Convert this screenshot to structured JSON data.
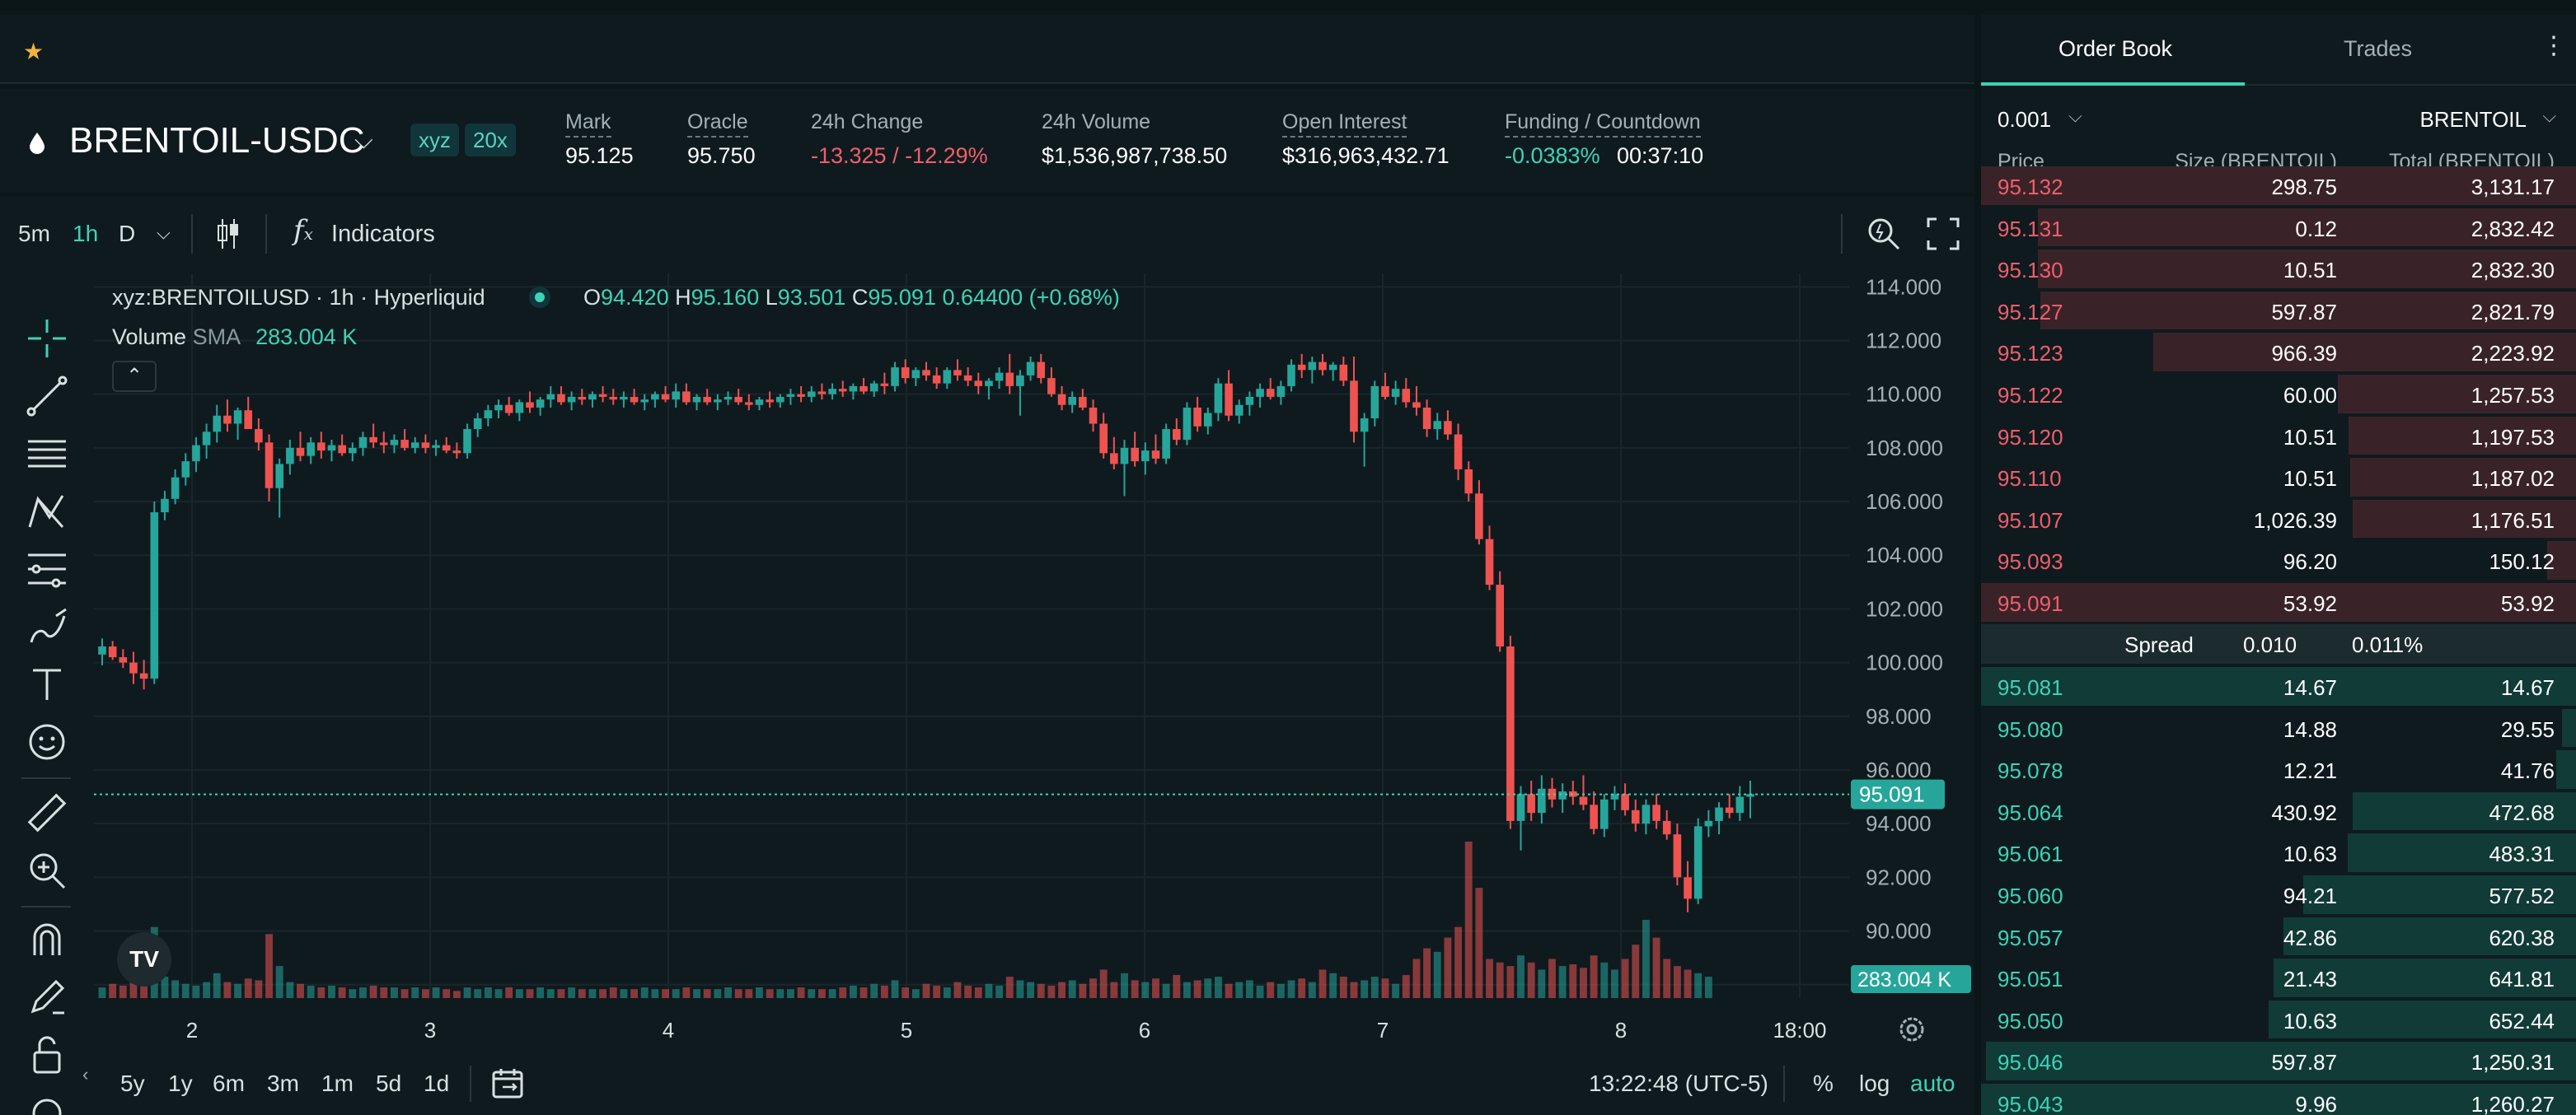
{
  "topbar": {
    "star_icon": "star-icon"
  },
  "market": {
    "pair": "BRENTOIL-USDC",
    "badges": [
      "xyz",
      "20x"
    ],
    "stats": [
      {
        "label": "Mark",
        "value": "95.125"
      },
      {
        "label": "Oracle",
        "value": "95.750"
      },
      {
        "label": "24h Change",
        "value": "-13.325 / -12.29%"
      },
      {
        "label": "24h Volume",
        "value": "$1,536,987,738.50"
      },
      {
        "label": "Open Interest",
        "value": "$316,963,432.71"
      },
      {
        "label": "Funding / Countdown",
        "value": "-0.0383%",
        "value2": "00:37:10"
      }
    ]
  },
  "chart_toolbar": {
    "timeframes": [
      "5m",
      "1h",
      "D"
    ],
    "active_timeframe": "1h",
    "indicators_label": "Indicators"
  },
  "chart_legend": {
    "symbol": "xyz:BRENTOILUSD · 1h · Hyperliquid",
    "o_label": "O",
    "o": "94.420",
    "h_label": "H",
    "h": "95.160",
    "l_label": "L",
    "l": "93.501",
    "c_label": "C",
    "c": "95.091",
    "change": "0.64400 (+0.68%)",
    "volume_label": "Volume",
    "sma_label": "SMA",
    "sma_value": "283.004 K"
  },
  "chart_data": {
    "type": "candlestick",
    "price_ticks": [
      "114.000",
      "112.000",
      "110.000",
      "108.000",
      "106.000",
      "104.000",
      "102.000",
      "100.000",
      "98.000",
      "96.000",
      "94.000",
      "92.000",
      "90.000",
      "88.000"
    ],
    "ylim": [
      87.5,
      114.5
    ],
    "time_ticks": [
      "2",
      "3",
      "4",
      "5",
      "6",
      "7",
      "8",
      "18:00"
    ],
    "last_price": "95.091",
    "volume_tag": "283.004 K",
    "candles": [
      [
        100.3,
        100.9,
        99.9,
        100.6
      ],
      [
        100.6,
        100.8,
        100.1,
        100.2
      ],
      [
        100.2,
        100.5,
        99.8,
        100.0
      ],
      [
        100.0,
        100.4,
        99.2,
        99.6
      ],
      [
        99.6,
        100.1,
        99.0,
        99.4
      ],
      [
        99.4,
        106.0,
        99.2,
        105.6
      ],
      [
        105.6,
        106.4,
        105.3,
        106.1
      ],
      [
        106.1,
        107.2,
        105.9,
        106.9
      ],
      [
        106.9,
        107.8,
        106.6,
        107.5
      ],
      [
        107.5,
        108.4,
        107.1,
        108.1
      ],
      [
        108.1,
        108.9,
        107.6,
        108.6
      ],
      [
        108.6,
        109.6,
        108.2,
        109.2
      ],
      [
        109.2,
        109.8,
        108.6,
        108.9
      ],
      [
        108.9,
        109.5,
        108.3,
        109.4
      ],
      [
        109.4,
        109.9,
        108.8,
        108.7
      ],
      [
        108.7,
        109.1,
        107.9,
        108.2
      ],
      [
        108.2,
        108.5,
        106.0,
        106.5
      ],
      [
        106.5,
        107.6,
        105.4,
        107.4
      ],
      [
        107.4,
        108.3,
        107.0,
        108.0
      ],
      [
        108.0,
        108.6,
        107.5,
        107.7
      ],
      [
        107.7,
        108.4,
        107.4,
        108.2
      ],
      [
        108.2,
        108.6,
        107.6,
        107.9
      ],
      [
        107.9,
        108.3,
        107.5,
        108.1
      ],
      [
        108.1,
        108.5,
        107.7,
        107.8
      ],
      [
        107.8,
        108.2,
        107.5,
        108.0
      ],
      [
        108.0,
        108.6,
        107.7,
        108.4
      ],
      [
        108.4,
        108.9,
        108.0,
        108.2
      ],
      [
        108.2,
        108.6,
        107.8,
        108.1
      ],
      [
        108.1,
        108.5,
        107.8,
        108.3
      ],
      [
        108.3,
        108.7,
        107.9,
        108.0
      ],
      [
        108.0,
        108.4,
        107.8,
        108.2
      ],
      [
        108.2,
        108.5,
        107.8,
        108.0
      ],
      [
        108.0,
        108.3,
        107.7,
        108.1
      ],
      [
        108.1,
        108.4,
        107.8,
        107.9
      ],
      [
        107.9,
        108.2,
        107.6,
        107.8
      ],
      [
        107.8,
        108.9,
        107.6,
        108.7
      ],
      [
        108.7,
        109.3,
        108.4,
        109.1
      ],
      [
        109.1,
        109.6,
        108.8,
        109.4
      ],
      [
        109.4,
        109.8,
        109.1,
        109.6
      ],
      [
        109.6,
        109.9,
        109.2,
        109.3
      ],
      [
        109.3,
        109.8,
        109.0,
        109.7
      ],
      [
        109.7,
        110.1,
        109.3,
        109.5
      ],
      [
        109.5,
        109.9,
        109.2,
        109.8
      ],
      [
        109.8,
        110.3,
        109.5,
        110.0
      ],
      [
        110.0,
        110.3,
        109.6,
        109.7
      ],
      [
        109.7,
        110.1,
        109.4,
        109.9
      ],
      [
        109.9,
        110.2,
        109.6,
        109.8
      ],
      [
        109.8,
        110.1,
        109.5,
        110.0
      ],
      [
        110.0,
        110.3,
        109.7,
        109.9
      ],
      [
        109.9,
        110.2,
        109.6,
        109.8
      ],
      [
        109.8,
        110.1,
        109.5,
        109.9
      ],
      [
        109.9,
        110.2,
        109.6,
        109.7
      ],
      [
        109.7,
        110.0,
        109.4,
        109.8
      ],
      [
        109.8,
        110.1,
        109.5,
        110.0
      ],
      [
        110.0,
        110.3,
        109.7,
        109.8
      ],
      [
        109.8,
        110.4,
        109.5,
        110.1
      ],
      [
        110.1,
        110.4,
        109.6,
        109.7
      ],
      [
        109.7,
        110.0,
        109.4,
        109.9
      ],
      [
        109.9,
        110.2,
        109.6,
        109.7
      ],
      [
        109.7,
        110.0,
        109.4,
        109.8
      ],
      [
        109.8,
        110.1,
        109.6,
        109.9
      ],
      [
        109.9,
        110.2,
        109.6,
        109.7
      ],
      [
        109.7,
        110.0,
        109.4,
        109.6
      ],
      [
        109.6,
        109.9,
        109.4,
        109.8
      ],
      [
        109.8,
        110.1,
        109.5,
        109.7
      ],
      [
        109.7,
        110.0,
        109.5,
        109.9
      ],
      [
        109.9,
        110.2,
        109.6,
        110.0
      ],
      [
        110.0,
        110.3,
        109.7,
        109.9
      ],
      [
        109.9,
        110.3,
        109.7,
        110.1
      ],
      [
        110.1,
        110.4,
        109.8,
        110.0
      ],
      [
        110.0,
        110.4,
        109.8,
        110.2
      ],
      [
        110.2,
        110.5,
        109.9,
        110.1
      ],
      [
        110.1,
        110.4,
        109.8,
        110.3
      ],
      [
        110.3,
        110.6,
        110.0,
        110.1
      ],
      [
        110.1,
        110.5,
        109.9,
        110.4
      ],
      [
        110.4,
        110.8,
        110.0,
        110.3
      ],
      [
        110.3,
        111.2,
        110.1,
        111.0
      ],
      [
        111.0,
        111.3,
        110.4,
        110.6
      ],
      [
        110.6,
        111.0,
        110.3,
        110.9
      ],
      [
        110.9,
        111.2,
        110.5,
        110.7
      ],
      [
        110.7,
        111.0,
        110.2,
        110.4
      ],
      [
        110.4,
        111.0,
        110.2,
        110.9
      ],
      [
        110.9,
        111.3,
        110.5,
        110.7
      ],
      [
        110.7,
        111.0,
        110.3,
        110.5
      ],
      [
        110.5,
        110.8,
        110.0,
        110.3
      ],
      [
        110.3,
        110.6,
        109.8,
        110.5
      ],
      [
        110.5,
        111.0,
        110.2,
        110.8
      ],
      [
        110.8,
        111.5,
        110.0,
        110.3
      ],
      [
        110.3,
        110.9,
        109.2,
        110.7
      ],
      [
        110.7,
        111.4,
        110.5,
        111.2
      ],
      [
        111.2,
        111.5,
        110.4,
        110.6
      ],
      [
        110.6,
        111.0,
        109.9,
        110.0
      ],
      [
        110.0,
        110.3,
        109.4,
        109.6
      ],
      [
        109.6,
        110.1,
        109.3,
        109.9
      ],
      [
        109.9,
        110.2,
        109.4,
        109.5
      ],
      [
        109.5,
        109.8,
        108.6,
        108.9
      ],
      [
        108.9,
        109.3,
        107.6,
        107.8
      ],
      [
        107.8,
        108.4,
        107.2,
        107.4
      ],
      [
        107.4,
        108.3,
        106.2,
        108.0
      ],
      [
        108.0,
        108.6,
        107.3,
        107.5
      ],
      [
        107.5,
        108.2,
        107.0,
        107.9
      ],
      [
        107.9,
        108.5,
        107.4,
        107.6
      ],
      [
        107.6,
        108.9,
        107.4,
        108.7
      ],
      [
        108.7,
        109.1,
        108.1,
        108.3
      ],
      [
        108.3,
        109.7,
        108.1,
        109.5
      ],
      [
        109.5,
        109.9,
        108.6,
        108.8
      ],
      [
        108.8,
        109.5,
        108.5,
        109.3
      ],
      [
        109.3,
        110.6,
        109.0,
        110.4
      ],
      [
        110.4,
        110.9,
        109.0,
        109.2
      ],
      [
        109.2,
        109.8,
        108.9,
        109.6
      ],
      [
        109.6,
        110.1,
        109.2,
        109.9
      ],
      [
        109.9,
        110.4,
        109.5,
        110.2
      ],
      [
        110.2,
        110.6,
        109.8,
        109.9
      ],
      [
        109.9,
        110.5,
        109.6,
        110.3
      ],
      [
        110.3,
        111.3,
        110.1,
        111.1
      ],
      [
        111.1,
        111.5,
        110.6,
        110.9
      ],
      [
        110.9,
        111.4,
        110.4,
        111.2
      ],
      [
        111.2,
        111.5,
        110.7,
        110.9
      ],
      [
        110.9,
        111.2,
        110.5,
        111.1
      ],
      [
        111.1,
        111.4,
        110.3,
        110.5
      ],
      [
        110.5,
        111.4,
        108.2,
        108.6
      ],
      [
        108.6,
        109.3,
        107.3,
        109.1
      ],
      [
        109.1,
        110.5,
        108.8,
        110.3
      ],
      [
        110.3,
        110.8,
        109.8,
        109.9
      ],
      [
        109.9,
        110.5,
        109.6,
        110.2
      ],
      [
        110.2,
        110.6,
        109.5,
        109.7
      ],
      [
        109.7,
        110.3,
        109.2,
        109.5
      ],
      [
        109.5,
        109.8,
        108.4,
        108.7
      ],
      [
        108.7,
        109.3,
        108.3,
        109.0
      ],
      [
        109.0,
        109.4,
        108.3,
        108.5
      ],
      [
        108.5,
        108.9,
        106.8,
        107.2
      ],
      [
        107.2,
        107.5,
        106.0,
        106.3
      ],
      [
        106.3,
        106.8,
        104.4,
        104.6
      ],
      [
        104.6,
        105.1,
        102.7,
        102.9
      ],
      [
        102.9,
        103.4,
        100.4,
        100.6
      ],
      [
        100.6,
        101.0,
        93.8,
        94.1
      ],
      [
        94.1,
        95.4,
        93.0,
        95.1
      ],
      [
        95.1,
        95.6,
        94.1,
        94.4
      ],
      [
        94.4,
        95.8,
        94.0,
        95.3
      ],
      [
        95.3,
        95.7,
        94.6,
        94.9
      ],
      [
        94.9,
        95.5,
        94.4,
        95.2
      ],
      [
        95.2,
        95.6,
        94.7,
        95.0
      ],
      [
        95.0,
        95.8,
        94.5,
        94.7
      ],
      [
        94.7,
        95.2,
        93.6,
        93.8
      ],
      [
        93.8,
        95.1,
        93.5,
        94.9
      ],
      [
        94.9,
        95.4,
        94.5,
        95.1
      ],
      [
        95.1,
        95.5,
        94.3,
        94.5
      ],
      [
        94.5,
        94.9,
        93.7,
        94.0
      ],
      [
        94.0,
        94.9,
        93.6,
        94.7
      ],
      [
        94.7,
        95.1,
        93.8,
        94.1
      ],
      [
        94.1,
        94.5,
        93.4,
        93.6
      ],
      [
        93.6,
        94.0,
        91.7,
        92.0
      ],
      [
        92.0,
        92.6,
        90.7,
        91.2
      ],
      [
        91.2,
        94.2,
        91.0,
        93.9
      ],
      [
        93.9,
        94.5,
        93.5,
        94.1
      ],
      [
        94.1,
        94.8,
        93.6,
        94.6
      ],
      [
        94.6,
        95.1,
        94.2,
        94.4
      ],
      [
        94.4,
        95.4,
        94.1,
        95.0
      ],
      [
        95.0,
        95.6,
        94.2,
        95.1
      ]
    ],
    "volumes": [
      6,
      8,
      7,
      9,
      8,
      40,
      12,
      10,
      8,
      7,
      9,
      14,
      9,
      8,
      11,
      10,
      36,
      18,
      9,
      8,
      7,
      6,
      7,
      6,
      5,
      6,
      7,
      6,
      6,
      5,
      6,
      5,
      6,
      5,
      4,
      6,
      5,
      6,
      5,
      6,
      5,
      5,
      6,
      5,
      5,
      6,
      5,
      5,
      5,
      6,
      5,
      5,
      6,
      5,
      5,
      5,
      6,
      5,
      5,
      5,
      6,
      5,
      5,
      6,
      5,
      5,
      5,
      6,
      5,
      5,
      5,
      6,
      7,
      6,
      8,
      7,
      10,
      6,
      5,
      8,
      7,
      6,
      9,
      7,
      6,
      8,
      7,
      12,
      10,
      9,
      8,
      7,
      9,
      10,
      8,
      11,
      16,
      9,
      14,
      10,
      9,
      11,
      8,
      13,
      9,
      10,
      11,
      12,
      8,
      9,
      10,
      7,
      9,
      8,
      10,
      11,
      9,
      16,
      14,
      12,
      9,
      10,
      12,
      11,
      8,
      13,
      22,
      28,
      26,
      34,
      40,
      88,
      62,
      22,
      20,
      18,
      24,
      20,
      16,
      22,
      18,
      19,
      17,
      24,
      20,
      16,
      22,
      30,
      44,
      34,
      22,
      18,
      16,
      14,
      12
    ]
  },
  "bottom_bar": {
    "ranges": [
      "5y",
      "1y",
      "6m",
      "3m",
      "1m",
      "5d",
      "1d"
    ],
    "clock": "13:22:48 (UTC-5)",
    "pct_label": "%",
    "log_label": "log",
    "auto_label": "auto"
  },
  "orderbook": {
    "tabs": [
      "Order Book",
      "Trades"
    ],
    "active_tab": "Order Book",
    "tick_size": "0.001",
    "unit": "BRENTOIL",
    "headers": [
      "Price",
      "Size (BRENTOIL)",
      "Total (BRENTOIL)"
    ],
    "asks": [
      {
        "price": "95.132",
        "size": "298.75",
        "total": "3,131.17",
        "depth": 1.0
      },
      {
        "price": "95.131",
        "size": "0.12",
        "total": "2,832.42",
        "depth": 0.905
      },
      {
        "price": "95.130",
        "size": "10.51",
        "total": "2,832.30",
        "depth": 0.904
      },
      {
        "price": "95.127",
        "size": "597.87",
        "total": "2,821.79",
        "depth": 0.9
      },
      {
        "price": "95.123",
        "size": "966.39",
        "total": "2,223.92",
        "depth": 0.71
      },
      {
        "price": "95.122",
        "size": "60.00",
        "total": "1,257.53",
        "depth": 0.4
      },
      {
        "price": "95.120",
        "size": "10.51",
        "total": "1,197.53",
        "depth": 0.382
      },
      {
        "price": "95.110",
        "size": "10.51",
        "total": "1,187.02",
        "depth": 0.379
      },
      {
        "price": "95.107",
        "size": "1,026.39",
        "total": "1,176.51",
        "depth": 0.376
      },
      {
        "price": "95.093",
        "size": "96.20",
        "total": "150.12",
        "depth": 0.048
      },
      {
        "price": "95.091",
        "size": "53.92",
        "total": "53.92",
        "depth": 1.0
      }
    ],
    "spread": {
      "label": "Spread",
      "value": "0.010",
      "pct": "0.011%"
    },
    "bids": [
      {
        "price": "95.081",
        "size": "14.67",
        "total": "14.67",
        "depth": 1.0
      },
      {
        "price": "95.080",
        "size": "14.88",
        "total": "29.55",
        "depth": 0.023
      },
      {
        "price": "95.078",
        "size": "12.21",
        "total": "41.76",
        "depth": 0.033
      },
      {
        "price": "95.064",
        "size": "430.92",
        "total": "472.68",
        "depth": 0.375
      },
      {
        "price": "95.061",
        "size": "10.63",
        "total": "483.31",
        "depth": 0.383
      },
      {
        "price": "95.060",
        "size": "94.21",
        "total": "577.52",
        "depth": 0.458
      },
      {
        "price": "95.057",
        "size": "42.86",
        "total": "620.38",
        "depth": 0.492
      },
      {
        "price": "95.051",
        "size": "21.43",
        "total": "641.81",
        "depth": 0.509
      },
      {
        "price": "95.050",
        "size": "10.63",
        "total": "652.44",
        "depth": 0.517
      },
      {
        "price": "95.046",
        "size": "597.87",
        "total": "1,250.31",
        "depth": 0.992
      },
      {
        "price": "95.043",
        "size": "9.96",
        "total": "1,260.27",
        "depth": 1.0
      }
    ]
  },
  "colors": {
    "up": "#26a69a",
    "down": "#ef5350",
    "accent": "#3dd3b6",
    "ask_bar": "#3a2328",
    "bid_bar": "#113b37"
  }
}
